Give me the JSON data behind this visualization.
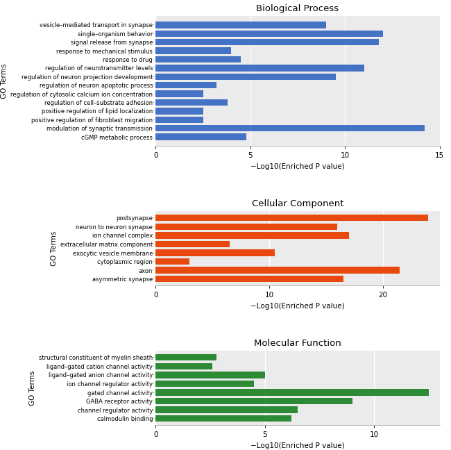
{
  "bp": {
    "title": "Biological Process",
    "color": "#4472C4",
    "xlabel": "−Log10(Enriched P value)",
    "ylabel": "GO Terms",
    "xlim": [
      0,
      15
    ],
    "xticks": [
      0,
      5,
      10,
      15
    ],
    "terms": [
      "vesicle–mediated transport in synapse",
      "single–organism behavior",
      "signal release from synapse",
      "response to mechanical stimulus",
      "response to drug",
      "regulation of neurotransmitter levels",
      "regulation of neuron projection development",
      "regulation of neuron apoptotic process",
      "regulation of cytosolic calcium ion concentration",
      "regulation of cell–substrate adhesion",
      "positive regulation of lipid localization",
      "positive regulation of fibroblast migration",
      "modulation of synaptic transmission",
      "cGMP metabolic process"
    ],
    "values": [
      9.0,
      12.0,
      11.8,
      4.0,
      4.5,
      11.0,
      9.5,
      3.2,
      2.5,
      3.8,
      2.5,
      2.5,
      14.2,
      4.8
    ]
  },
  "cc": {
    "title": "Cellular Component",
    "color": "#E8490F",
    "xlabel": "−Log10(Enriched P value)",
    "ylabel": "GO Terms",
    "xlim": [
      0,
      25
    ],
    "xticks": [
      0,
      10,
      20
    ],
    "terms": [
      "postsynapse",
      "neuron to neuron synapse",
      "ion channel complex",
      "extracellular matrix component",
      "exocytic vesicle membrane",
      "cytoplasmic region",
      "axon",
      "asymmetric synapse"
    ],
    "values": [
      24.0,
      16.0,
      17.0,
      6.5,
      10.5,
      3.0,
      21.5,
      16.5
    ]
  },
  "mf": {
    "title": "Molecular Function",
    "color": "#2E8B35",
    "xlabel": "−Log10(Enriched P value)",
    "ylabel": "GO Terms",
    "xlim": [
      0,
      13
    ],
    "xticks": [
      0,
      5,
      10
    ],
    "terms": [
      "structural constituent of myelin sheath",
      "ligand–gated cation channel activity",
      "ligand–gated anion channel activity",
      "ion channel regulator activity",
      "gated channel activity",
      "GABA receptor activity",
      "channel regulator activity",
      "calmodulin binding"
    ],
    "values": [
      2.8,
      2.6,
      5.0,
      4.5,
      12.5,
      9.0,
      6.5,
      6.2
    ]
  },
  "background_color": "#EBEBEB",
  "fig_bg": "#FFFFFF"
}
